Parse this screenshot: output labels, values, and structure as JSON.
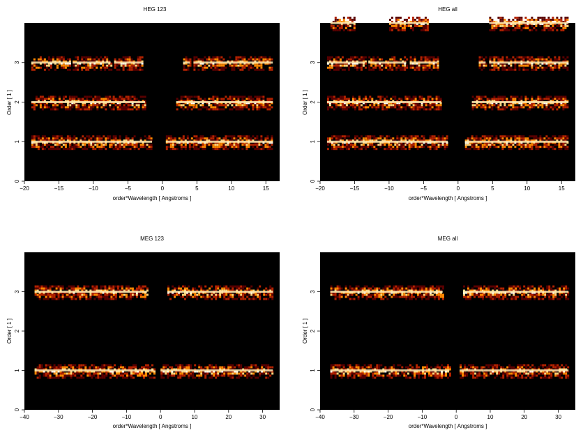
{
  "chart_data": [
    {
      "type": "heatmap",
      "title": "HEG 123",
      "xlabel": "order*Wavelength [ Angstroms ]",
      "ylabel": "Order [ 1 ]",
      "xlim": [
        -20,
        17
      ],
      "ylim": [
        0,
        4
      ],
      "x_ticks": [
        -20,
        -15,
        -10,
        -5,
        0,
        5,
        10,
        15
      ],
      "y_ticks": [
        0,
        1,
        2,
        3
      ],
      "colormap": [
        "#000000",
        "#5a0000",
        "#b22200",
        "#ff8800",
        "#ffd37a",
        "#ffffff"
      ],
      "bands": [
        {
          "order": 1,
          "segments": [
            [
              -19,
              -13.5
            ],
            [
              -13.5,
              -7.5
            ],
            [
              -7.5,
              -1.5
            ],
            [
              0.5,
              4.5
            ],
            [
              4.5,
              16
            ]
          ]
        },
        {
          "order": 2,
          "segments": [
            [
              -19,
              -13.5
            ],
            [
              -13.5,
              -7.5
            ],
            [
              -7.5,
              -2.5
            ],
            [
              2,
              4.5
            ],
            [
              4.5,
              16
            ]
          ]
        },
        {
          "order": 3,
          "segments": [
            [
              -19,
              -13.5
            ],
            [
              -13,
              -7.5
            ],
            [
              -7,
              -3
            ],
            [
              3,
              4
            ],
            [
              4.5,
              16
            ]
          ]
        }
      ]
    },
    {
      "type": "heatmap",
      "title": "HEG all",
      "xlabel": "order*Wavelength [ Angstroms ]",
      "ylabel": "Order [ 1 ]",
      "xlim": [
        -20,
        17
      ],
      "ylim": [
        0,
        4
      ],
      "x_ticks": [
        -20,
        -15,
        -10,
        -5,
        0,
        5,
        10,
        15
      ],
      "y_ticks": [
        0,
        1,
        2,
        3
      ],
      "colormap": [
        "#000000",
        "#5a0000",
        "#b22200",
        "#ff8800",
        "#ffd37a",
        "#ffffff"
      ],
      "bands": [
        {
          "order": 1,
          "segments": [
            [
              -19,
              -13.5
            ],
            [
              -13.5,
              -7.5
            ],
            [
              -7.5,
              -1.5
            ],
            [
              1,
              4.5
            ],
            [
              4.5,
              16
            ]
          ]
        },
        {
          "order": 2,
          "segments": [
            [
              -19,
              -13.5
            ],
            [
              -13.5,
              -7.5
            ],
            [
              -7.5,
              -2.5
            ],
            [
              2,
              4.5
            ],
            [
              4.5,
              16
            ]
          ]
        },
        {
          "order": 3,
          "segments": [
            [
              -19,
              -13.5
            ],
            [
              -13,
              -7.5
            ],
            [
              -7,
              -3
            ],
            [
              3,
              4
            ],
            [
              4.5,
              16
            ]
          ]
        },
        {
          "order": 4,
          "segments": [
            [
              -18.5,
              -15
            ],
            [
              -10,
              -4.5
            ],
            [
              4.5,
              16
            ]
          ]
        }
      ]
    },
    {
      "type": "heatmap",
      "title": "MEG 123",
      "xlabel": "order*Wavelength [ Angstroms ]",
      "ylabel": "Order [ 1 ]",
      "xlim": [
        -40,
        35
      ],
      "ylim": [
        0,
        4
      ],
      "x_ticks": [
        -40,
        -30,
        -20,
        -10,
        0,
        10,
        20,
        30
      ],
      "y_ticks": [
        0,
        1,
        2,
        3
      ],
      "colormap": [
        "#000000",
        "#5a0000",
        "#b22200",
        "#ff8800",
        "#ffd37a",
        "#ffffff"
      ],
      "bands": [
        {
          "order": 1,
          "segments": [
            [
              -37,
              -26
            ],
            [
              -26,
              -15
            ],
            [
              -15,
              -2
            ],
            [
              0,
              8
            ],
            [
              8,
              33
            ]
          ]
        },
        {
          "order": 3,
          "segments": [
            [
              -37,
              -27
            ],
            [
              -27,
              -14
            ],
            [
              -14,
              -4
            ],
            [
              2,
              8
            ],
            [
              8,
              33
            ]
          ]
        }
      ]
    },
    {
      "type": "heatmap",
      "title": "MEG all",
      "xlabel": "order*Wavelength [ Angstroms ]",
      "ylabel": "Order [ 1 ]",
      "xlim": [
        -40,
        35
      ],
      "ylim": [
        0,
        4
      ],
      "x_ticks": [
        -40,
        -30,
        -20,
        -10,
        0,
        10,
        20,
        30
      ],
      "y_ticks": [
        0,
        1,
        2,
        3
      ],
      "colormap": [
        "#000000",
        "#5a0000",
        "#b22200",
        "#ff8800",
        "#ffd37a",
        "#ffffff"
      ],
      "bands": [
        {
          "order": 1,
          "segments": [
            [
              -37,
              -26
            ],
            [
              -26,
              -15
            ],
            [
              -15,
              -2
            ],
            [
              1,
              8
            ],
            [
              8,
              33
            ]
          ]
        },
        {
          "order": 3,
          "segments": [
            [
              -37,
              -26
            ],
            [
              -26,
              -14
            ],
            [
              -14,
              -4
            ],
            [
              2,
              8
            ],
            [
              8,
              33
            ]
          ]
        }
      ]
    }
  ]
}
